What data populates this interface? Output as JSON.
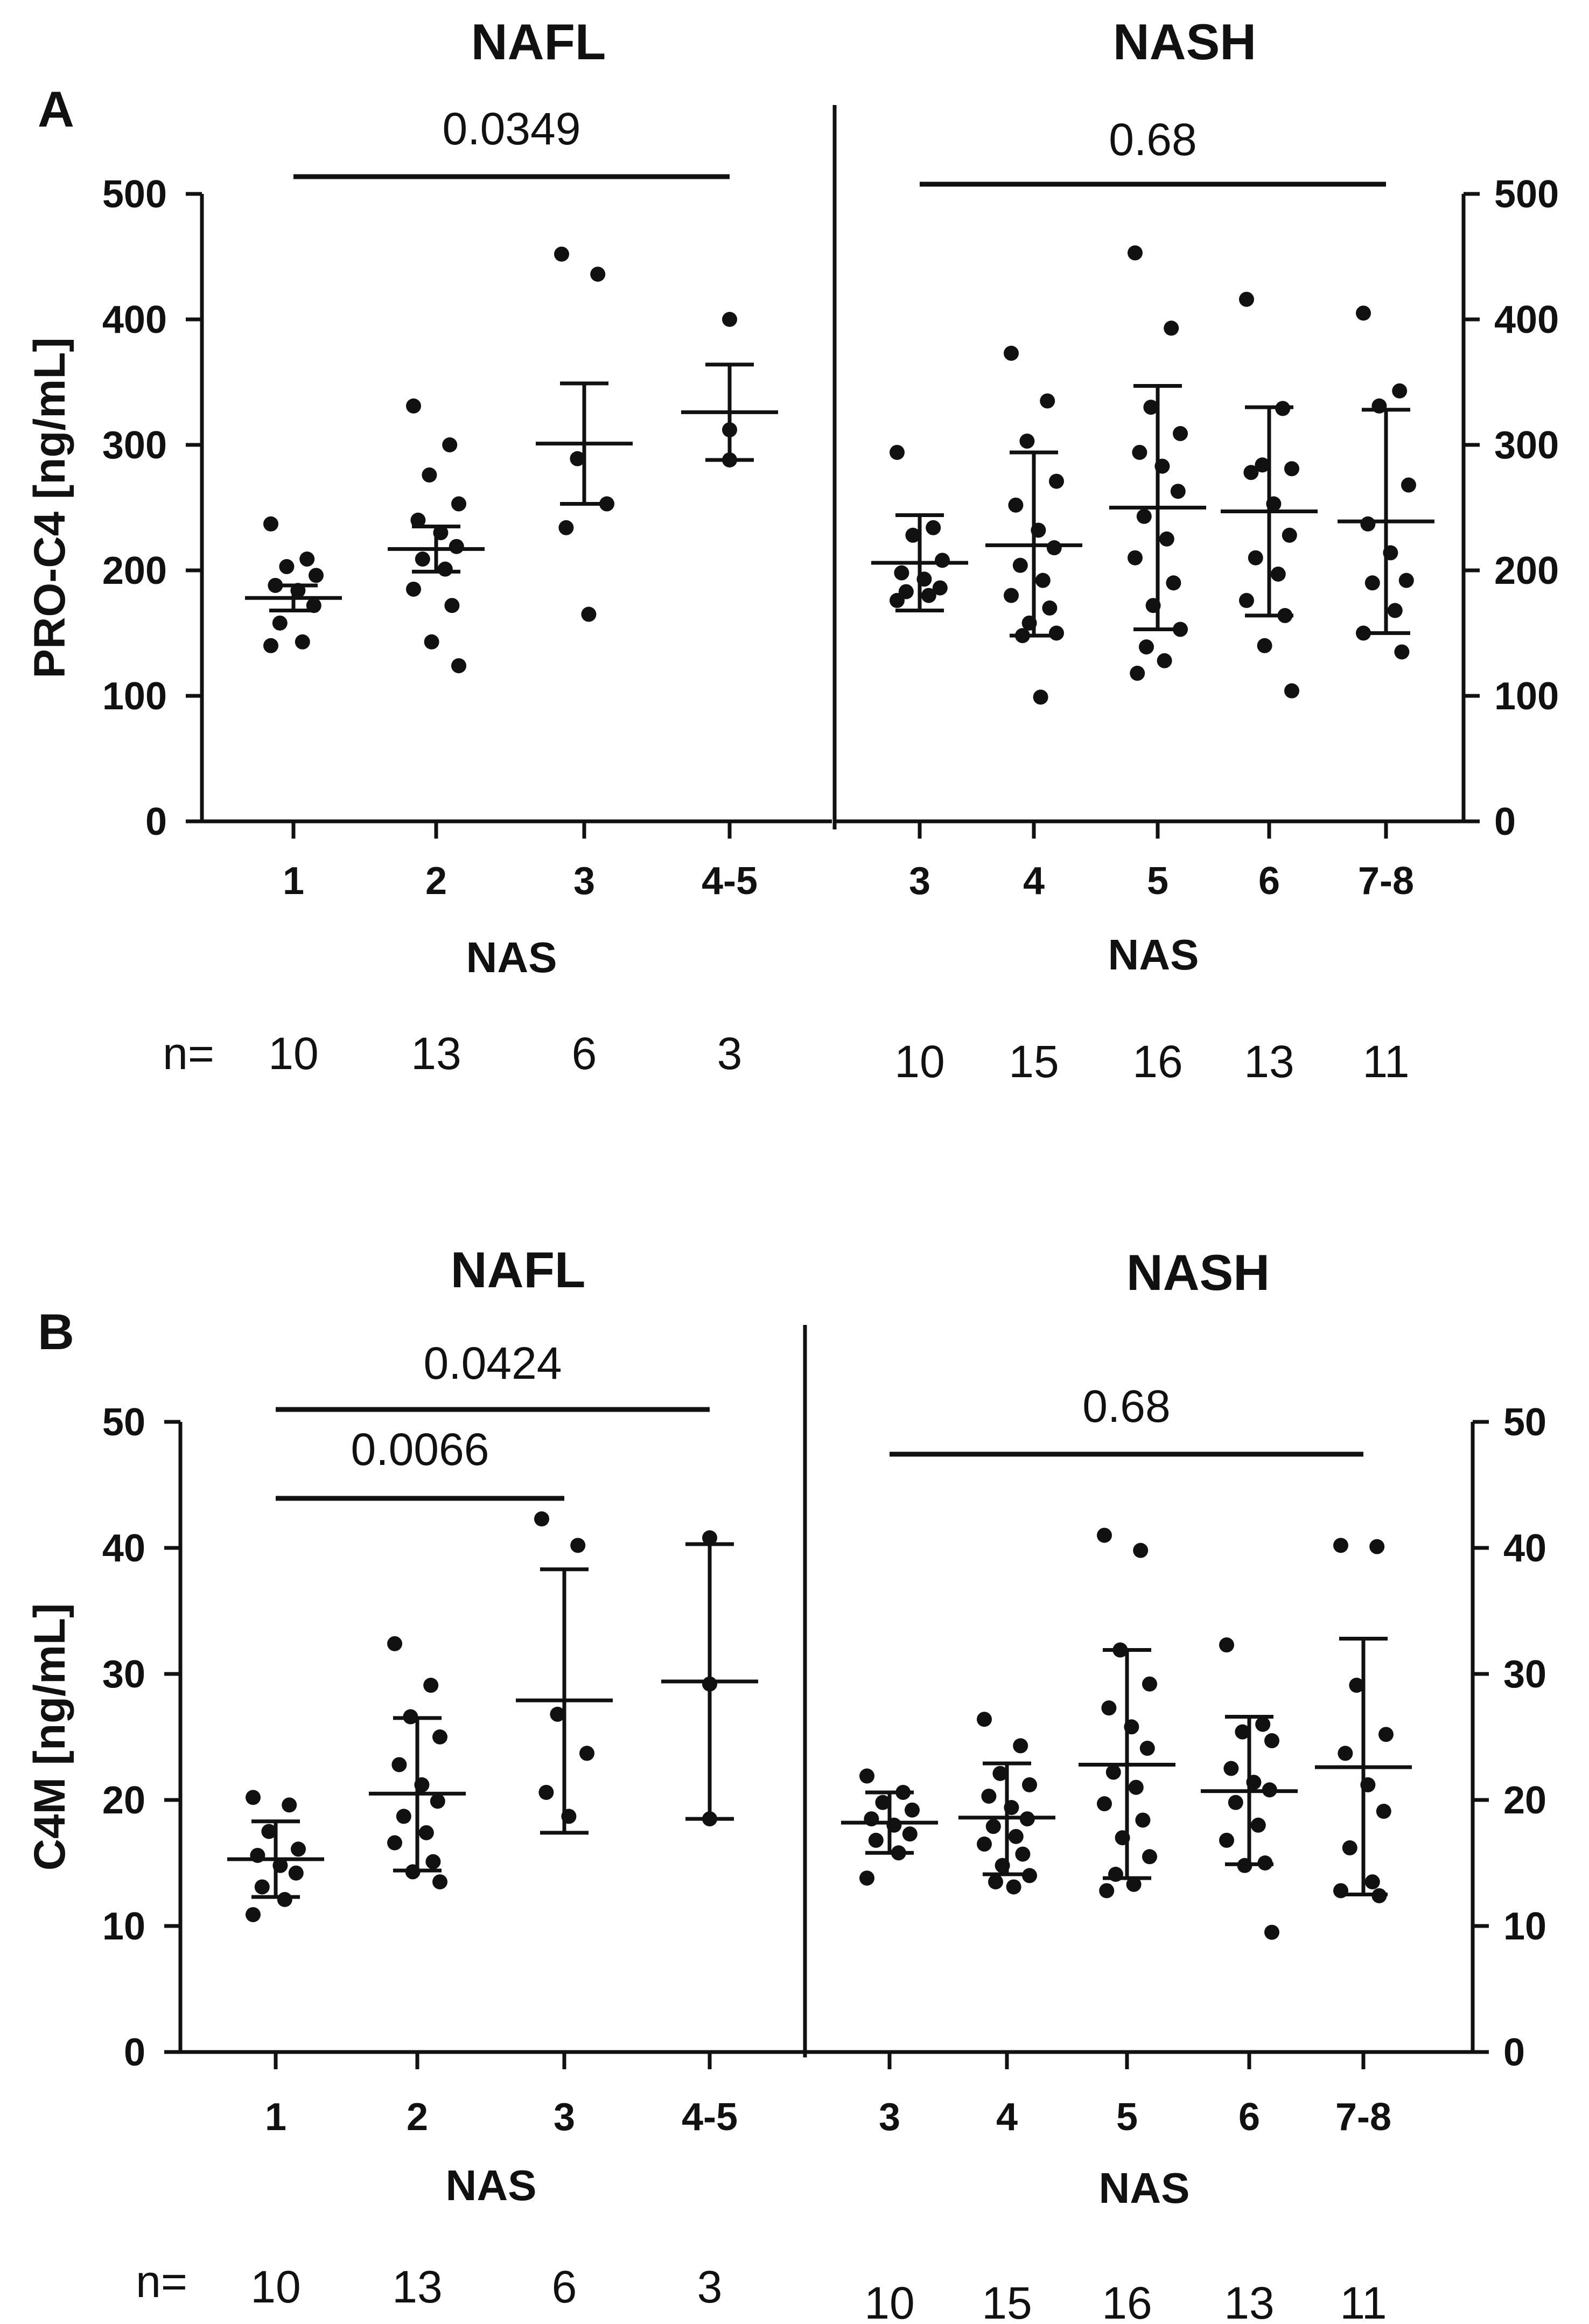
{
  "chart_data": [
    {
      "panel": "A",
      "type": "scatter",
      "ylabel": "PRO-C4 [ng/mL]",
      "ylim": [
        0,
        500
      ],
      "yticks": [
        0,
        100,
        200,
        300,
        400,
        500
      ],
      "n_prefix": "n=",
      "groups": [
        {
          "title": "NAFL",
          "xlabel": "NAS",
          "comparison": {
            "p": "0.0349",
            "from": 0,
            "to": 3
          },
          "categories": [
            {
              "label": "1",
              "n": "10",
              "mean": 178,
              "err_low": 168,
              "err_high": 188,
              "points": [
                237,
                209,
                203,
                196,
                188,
                184,
                172,
                158,
                143,
                140
              ]
            },
            {
              "label": "2",
              "n": "13",
              "mean": 217,
              "err_low": 199,
              "err_high": 235,
              "points": [
                331,
                300,
                276,
                253,
                240,
                230,
                219,
                209,
                201,
                185,
                172,
                143,
                124
              ]
            },
            {
              "label": "3",
              "n": "6",
              "mean": 301,
              "err_low": 253,
              "err_high": 349,
              "points": [
                452,
                436,
                289,
                253,
                234,
                165
              ]
            },
            {
              "label": "4-5",
              "n": "3",
              "mean": 326,
              "err_low": 288,
              "err_high": 364,
              "points": [
                400,
                312,
                288
              ]
            }
          ]
        },
        {
          "title": "NASH",
          "xlabel": "NAS",
          "comparison": {
            "p": "0.68",
            "from": 0,
            "to": 4
          },
          "categories": [
            {
              "label": "3",
              "n": "10",
              "mean": 206,
              "err_low": 168,
              "err_high": 244,
              "points": [
                294,
                234,
                228,
                208,
                198,
                193,
                186,
                183,
                180,
                176
              ]
            },
            {
              "label": "4",
              "n": "15",
              "mean": 220,
              "err_low": 148,
              "err_high": 294,
              "points": [
                373,
                335,
                303,
                271,
                252,
                232,
                218,
                204,
                192,
                180,
                170,
                158,
                150,
                148,
                99
              ]
            },
            {
              "label": "5",
              "n": "16",
              "mean": 250,
              "err_low": 153,
              "err_high": 347,
              "points": [
                453,
                393,
                330,
                309,
                294,
                283,
                263,
                243,
                225,
                210,
                190,
                172,
                153,
                139,
                128,
                118
              ]
            },
            {
              "label": "6",
              "n": "13",
              "mean": 247,
              "err_low": 164,
              "err_high": 330,
              "points": [
                416,
                329,
                284,
                281,
                278,
                253,
                228,
                210,
                197,
                176,
                164,
                140,
                104
              ]
            },
            {
              "label": "7-8",
              "n": "11",
              "mean": 239,
              "err_low": 150,
              "err_high": 328,
              "points": [
                405,
                343,
                331,
                268,
                237,
                214,
                192,
                190,
                168,
                150,
                135
              ]
            }
          ]
        }
      ]
    },
    {
      "panel": "B",
      "type": "scatter",
      "ylabel": "C4M [ng/mL]",
      "ylim": [
        0,
        50
      ],
      "yticks": [
        0,
        10,
        20,
        30,
        40,
        50
      ],
      "n_prefix": "n=",
      "groups": [
        {
          "title": "NAFL",
          "xlabel": "NAS",
          "comparisons": [
            {
              "p": "0.0424",
              "from": 0,
              "to": 3,
              "level": 2
            },
            {
              "p": "0.0066",
              "from": 0,
              "to": 2,
              "level": 1
            }
          ],
          "categories": [
            {
              "label": "1",
              "n": "10",
              "mean": 15.3,
              "err_low": 12.3,
              "err_high": 18.3,
              "points": [
                20.2,
                19.6,
                17.5,
                16.1,
                15.6,
                14.8,
                14.2,
                13.1,
                12.1,
                10.9
              ]
            },
            {
              "label": "2",
              "n": "13",
              "mean": 20.5,
              "err_low": 14.4,
              "err_high": 26.5,
              "points": [
                32.4,
                29.1,
                26.6,
                25.0,
                22.8,
                21.2,
                19.9,
                18.7,
                17.4,
                16.6,
                15.1,
                14.3,
                13.5
              ]
            },
            {
              "label": "3",
              "n": "6",
              "mean": 27.9,
              "err_low": 17.4,
              "err_high": 38.3,
              "points": [
                42.3,
                40.2,
                26.8,
                23.7,
                20.6,
                18.7
              ]
            },
            {
              "label": "4-5",
              "n": "3",
              "mean": 29.4,
              "err_low": 18.5,
              "err_high": 40.3,
              "points": [
                40.8,
                29.2,
                18.5
              ]
            }
          ]
        },
        {
          "title": "NASH",
          "xlabel": "NAS",
          "comparison": {
            "p": "0.68",
            "from": 0,
            "to": 4
          },
          "categories": [
            {
              "label": "3",
              "n": "10",
              "mean": 18.2,
              "err_low": 15.8,
              "err_high": 20.6,
              "points": [
                21.9,
                20.6,
                19.8,
                19.2,
                18.5,
                18.0,
                17.3,
                16.8,
                15.8,
                13.8
              ]
            },
            {
              "label": "4",
              "n": "15",
              "mean": 18.6,
              "err_low": 14.1,
              "err_high": 22.9,
              "points": [
                26.4,
                24.3,
                22.1,
                21.2,
                20.3,
                19.4,
                18.5,
                17.9,
                17.1,
                16.5,
                15.7,
                14.8,
                14.0,
                13.5,
                13.1
              ]
            },
            {
              "label": "5",
              "n": "16",
              "mean": 22.8,
              "err_low": 13.8,
              "err_high": 31.9,
              "points": [
                41.0,
                39.8,
                31.9,
                29.2,
                27.3,
                25.8,
                24.1,
                22.2,
                21.0,
                19.7,
                18.4,
                17.0,
                15.5,
                14.1,
                13.3,
                12.8
              ]
            },
            {
              "label": "6",
              "n": "13",
              "mean": 20.7,
              "err_low": 14.9,
              "err_high": 26.6,
              "points": [
                32.3,
                26.0,
                25.4,
                24.7,
                22.5,
                21.4,
                20.8,
                19.8,
                18.0,
                16.8,
                15.0,
                14.8,
                9.5
              ]
            },
            {
              "label": "7-8",
              "n": "11",
              "mean": 22.6,
              "err_low": 12.5,
              "err_high": 32.8,
              "points": [
                40.2,
                40.1,
                29.1,
                25.2,
                23.7,
                21.2,
                19.1,
                16.2,
                13.5,
                12.8,
                12.4
              ]
            }
          ]
        }
      ]
    }
  ]
}
